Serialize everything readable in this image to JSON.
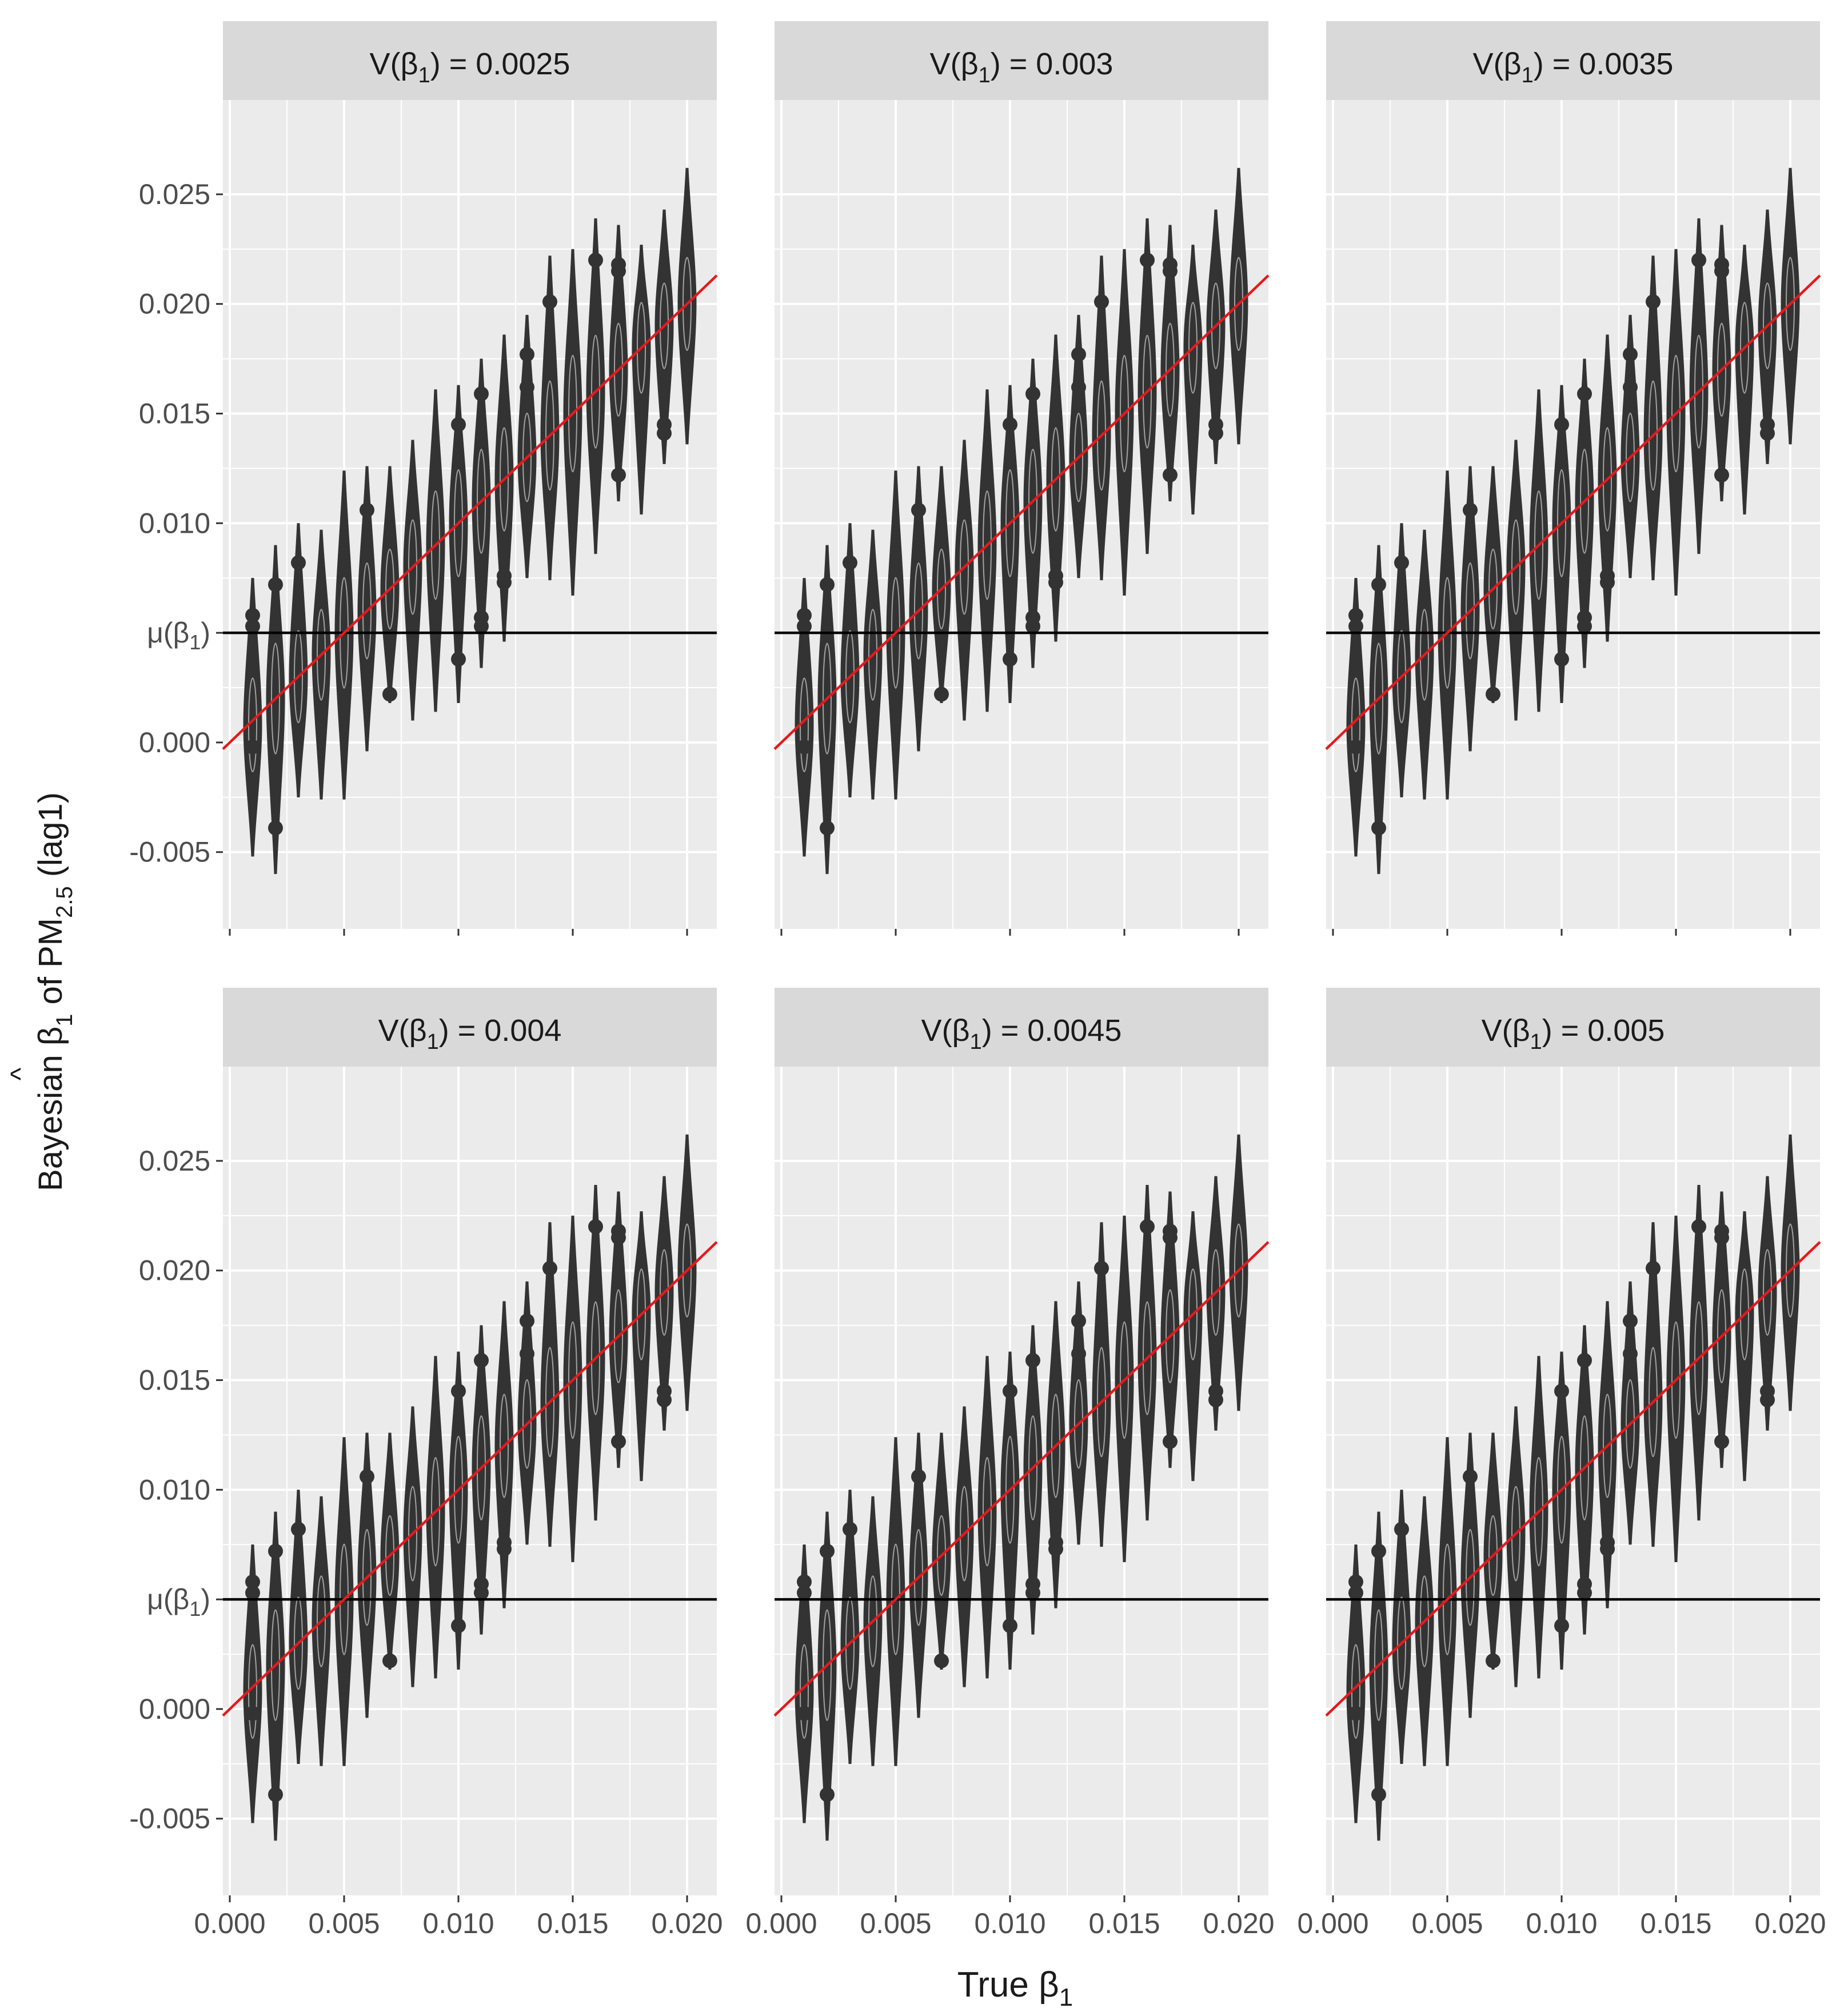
{
  "chart_data": {
    "type": "violin",
    "layout": "facet grid, 2 rows x 3 columns",
    "xlabel": "True β1",
    "ylabel": "Bayesian β̂1 of PM2.5 (lag1)",
    "ylabel_parts": {
      "prefix": "Bayesian ",
      "beta": "β",
      "hat": "^",
      "sub1": "1",
      "middle": " of PM",
      "sub2": "2.5",
      "suffix": " (lag1)"
    },
    "xlabel_parts": {
      "prefix": "True ",
      "beta": "β",
      "sub": "1"
    },
    "xlim": [
      -0.0003,
      0.0213
    ],
    "ylim": [
      -0.0085,
      0.0293
    ],
    "x_ticks": [
      "0.000",
      "0.005",
      "0.010",
      "0.015",
      "0.020"
    ],
    "x_tick_values": [
      0.0,
      0.005,
      0.01,
      0.015,
      0.02
    ],
    "y_ticks": [
      "-0.005",
      "0.000",
      "μ(β1)",
      "0.010",
      "0.015",
      "0.020",
      "0.025"
    ],
    "y_tick_values": [
      -0.005,
      0.0,
      0.005,
      0.01,
      0.015,
      0.02,
      0.025
    ],
    "y_tick_mu": {
      "mu": "μ(",
      "beta": "β",
      "sub": "1",
      "close": ")"
    },
    "hline": {
      "y": 0.005,
      "label": "μ(β1)",
      "color": "#000000"
    },
    "identity_line": {
      "slope": 1,
      "intercept": 0,
      "color": "#e41a1c"
    },
    "grid": true,
    "colors": {
      "panel_bg": "#ebebeb",
      "grid": "#ffffff",
      "strip_bg": "#d9d9d9",
      "violin": "#333333",
      "violin_fill": "#ebebeb"
    },
    "violins": [
      {
        "x": 0.001,
        "center": 0.0008,
        "low": -0.0052,
        "high": 0.0075,
        "outliers": [
          -0.0002,
          0.0058,
          0.0053
        ]
      },
      {
        "x": 0.002,
        "center": 0.002,
        "low": -0.006,
        "high": 0.009,
        "outliers": [
          -0.0039,
          0.0072
        ]
      },
      {
        "x": 0.003,
        "center": 0.003,
        "low": -0.0025,
        "high": 0.01,
        "outliers": [
          0.0082
        ]
      },
      {
        "x": 0.004,
        "center": 0.004,
        "low": -0.0026,
        "high": 0.0097,
        "outliers": []
      },
      {
        "x": 0.005,
        "center": 0.005,
        "low": -0.0026,
        "high": 0.0124,
        "outliers": []
      },
      {
        "x": 0.006,
        "center": 0.006,
        "low": -0.0004,
        "high": 0.0126,
        "outliers": [
          0.0106
        ]
      },
      {
        "x": 0.007,
        "center": 0.007,
        "low": 0.0018,
        "high": 0.0126,
        "outliers": [
          0.0022
        ]
      },
      {
        "x": 0.008,
        "center": 0.008,
        "low": 0.001,
        "high": 0.0138,
        "outliers": []
      },
      {
        "x": 0.009,
        "center": 0.009,
        "low": 0.0014,
        "high": 0.0161,
        "outliers": []
      },
      {
        "x": 0.01,
        "center": 0.01,
        "low": 0.0018,
        "high": 0.0163,
        "outliers": [
          0.0145,
          0.0038
        ]
      },
      {
        "x": 0.011,
        "center": 0.011,
        "low": 0.0034,
        "high": 0.0175,
        "outliers": [
          0.0159,
          0.0057,
          0.0053
        ]
      },
      {
        "x": 0.012,
        "center": 0.012,
        "low": 0.0046,
        "high": 0.0186,
        "outliers": [
          0.0076,
          0.0073
        ]
      },
      {
        "x": 0.013,
        "center": 0.013,
        "low": 0.0075,
        "high": 0.0195,
        "outliers": [
          0.0177,
          0.0162
        ]
      },
      {
        "x": 0.014,
        "center": 0.014,
        "low": 0.0074,
        "high": 0.0222,
        "outliers": [
          0.0201
        ]
      },
      {
        "x": 0.015,
        "center": 0.015,
        "low": 0.0067,
        "high": 0.0225,
        "outliers": []
      },
      {
        "x": 0.016,
        "center": 0.016,
        "low": 0.0086,
        "high": 0.0239,
        "outliers": [
          0.022
        ]
      },
      {
        "x": 0.017,
        "center": 0.017,
        "low": 0.011,
        "high": 0.0236,
        "outliers": [
          0.0218,
          0.0215,
          0.0122
        ]
      },
      {
        "x": 0.018,
        "center": 0.018,
        "low": 0.0104,
        "high": 0.0227,
        "outliers": []
      },
      {
        "x": 0.019,
        "center": 0.019,
        "low": 0.0127,
        "high": 0.0243,
        "outliers": [
          0.0145,
          0.0141
        ]
      },
      {
        "x": 0.02,
        "center": 0.02,
        "low": 0.0136,
        "high": 0.0262,
        "outliers": []
      }
    ],
    "panels": [
      {
        "title": "V(β1) = 0.0025",
        "strip": {
          "v": "V(",
          "beta": "β",
          "sub": "1",
          "close": ")",
          "eq": " = ",
          "value": "0.0025"
        }
      },
      {
        "title": "V(β1) = 0.003",
        "strip": {
          "v": "V(",
          "beta": "β",
          "sub": "1",
          "close": ")",
          "eq": " = ",
          "value": "0.003"
        }
      },
      {
        "title": "V(β1) = 0.0035",
        "strip": {
          "v": "V(",
          "beta": "β",
          "sub": "1",
          "close": ")",
          "eq": " = ",
          "value": "0.0035"
        }
      },
      {
        "title": "V(β1) = 0.004",
        "strip": {
          "v": "V(",
          "beta": "β",
          "sub": "1",
          "close": ")",
          "eq": " = ",
          "value": "0.004"
        }
      },
      {
        "title": "V(β1) = 0.0045",
        "strip": {
          "v": "V(",
          "beta": "β",
          "sub": "1",
          "close": ")",
          "eq": " = ",
          "value": "0.0045"
        }
      },
      {
        "title": "V(β1) = 0.005",
        "strip": {
          "v": "V(",
          "beta": "β",
          "sub": "1",
          "close": ")",
          "eq": " = ",
          "value": "0.005"
        }
      }
    ]
  }
}
